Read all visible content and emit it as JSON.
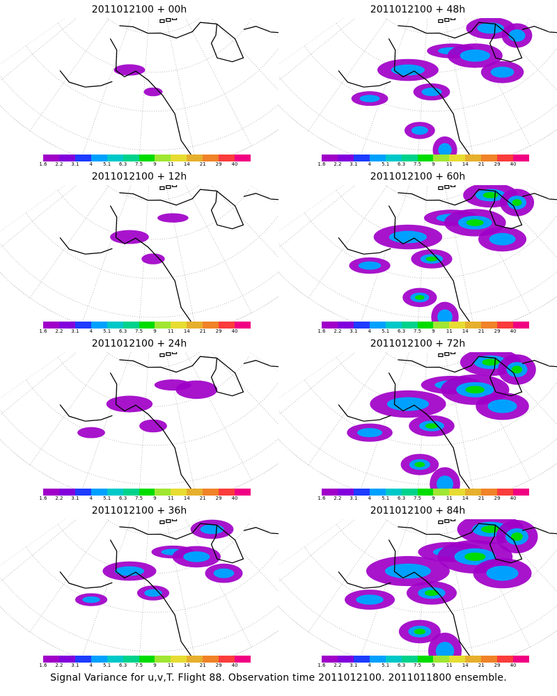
{
  "panels": [
    {
      "title": "2011012100 + 00h",
      "lead_hours": 0
    },
    {
      "title": "2011012100 + 48h",
      "lead_hours": 48
    },
    {
      "title": "2011012100 + 12h",
      "lead_hours": 12
    },
    {
      "title": "2011012100 + 60h",
      "lead_hours": 60
    },
    {
      "title": "2011012100 + 24h",
      "lead_hours": 24
    },
    {
      "title": "2011012100 + 72h",
      "lead_hours": 72
    },
    {
      "title": "2011012100 + 36h",
      "lead_hours": 36
    },
    {
      "title": "2011012100 + 84h",
      "lead_hours": 84
    }
  ],
  "colorbar": {
    "labels": [
      "1.6",
      "2.2",
      "3.1",
      "4",
      "5.1",
      "6.3",
      "7.5",
      "9",
      "11",
      "14",
      "21",
      "29",
      "40"
    ],
    "colors": [
      "#a000c8",
      "#8200dc",
      "#1e3cff",
      "#00a0ff",
      "#00c8c8",
      "#00d28c",
      "#00dc00",
      "#a0e632",
      "#e6dc32",
      "#e6af2d",
      "#f08228",
      "#fa3c3c",
      "#f00082"
    ]
  },
  "footer": "Signal Variance for u,v,T. Flight 88. Observation time 2011012100. 2011011800 ensemble."
}
